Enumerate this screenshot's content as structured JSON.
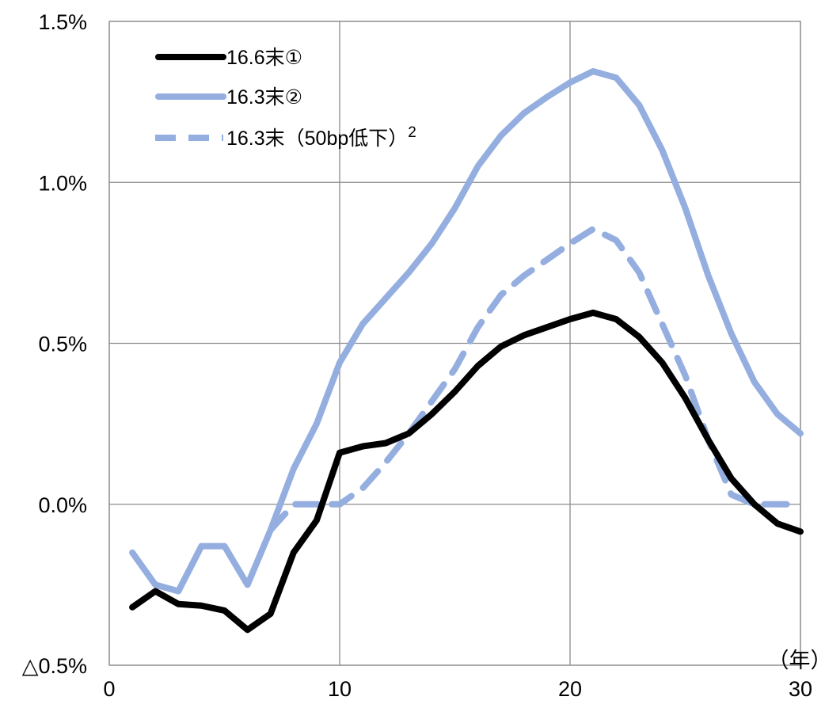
{
  "chart_data": {
    "type": "line",
    "x_unit_label": "（年）",
    "xlim": [
      0,
      30
    ],
    "ylim": [
      -0.5,
      1.5
    ],
    "x_ticks": [
      0,
      10,
      20,
      30
    ],
    "y_ticks": [
      -0.5,
      0.0,
      0.5,
      1.0,
      1.5
    ],
    "x_tick_labels": [
      "0",
      "10",
      "20",
      "30"
    ],
    "y_tick_labels": [
      "△0.5%",
      "0.0%",
      "0.5%",
      "1.0%",
      "1.5%"
    ],
    "grid": true,
    "legend_position": "top-left",
    "series": [
      {
        "name": "16.6末①",
        "color": "#000000",
        "dash": "solid",
        "x": [
          1,
          2,
          3,
          4,
          5,
          6,
          7,
          8,
          9,
          10,
          11,
          12,
          13,
          14,
          15,
          16,
          17,
          18,
          19,
          20,
          21,
          22,
          23,
          24,
          25,
          26,
          27,
          28,
          29,
          30
        ],
        "values": [
          -0.32,
          -0.27,
          -0.31,
          -0.315,
          -0.33,
          -0.39,
          -0.34,
          -0.15,
          -0.05,
          0.16,
          0.18,
          0.19,
          0.22,
          0.28,
          0.35,
          0.43,
          0.49,
          0.525,
          0.55,
          0.575,
          0.595,
          0.575,
          0.52,
          0.44,
          0.33,
          0.2,
          0.08,
          0.0,
          -0.06,
          -0.085
        ]
      },
      {
        "name": "16.3末②",
        "color": "#95aee0",
        "dash": "solid",
        "x": [
          1,
          2,
          3,
          4,
          5,
          6,
          7,
          8,
          9,
          10,
          11,
          12,
          13,
          14,
          15,
          16,
          17,
          18,
          19,
          20,
          21,
          22,
          23,
          24,
          25,
          26,
          27,
          28,
          29,
          30
        ],
        "values": [
          -0.15,
          -0.25,
          -0.27,
          -0.13,
          -0.13,
          -0.25,
          -0.08,
          0.11,
          0.25,
          0.44,
          0.56,
          0.64,
          0.72,
          0.81,
          0.92,
          1.05,
          1.145,
          1.215,
          1.265,
          1.31,
          1.345,
          1.325,
          1.24,
          1.1,
          0.92,
          0.71,
          0.53,
          0.38,
          0.28,
          0.22
        ]
      },
      {
        "name": "16.3末（50bp低下）",
        "name_superscript": "2",
        "color": "#95aee0",
        "dash": "dashed",
        "x": [
          7,
          8,
          9,
          10,
          11,
          12,
          13,
          14,
          15,
          16,
          17,
          18,
          19,
          20,
          21,
          22,
          23,
          24,
          25,
          26,
          27,
          28,
          29,
          30
        ],
        "values": [
          -0.08,
          0.0,
          0.0,
          0.0,
          0.05,
          0.13,
          0.22,
          0.32,
          0.42,
          0.55,
          0.65,
          0.71,
          0.76,
          0.81,
          0.855,
          0.82,
          0.72,
          0.56,
          0.4,
          0.2,
          0.03,
          0.0,
          0.0,
          0.0
        ]
      }
    ]
  }
}
